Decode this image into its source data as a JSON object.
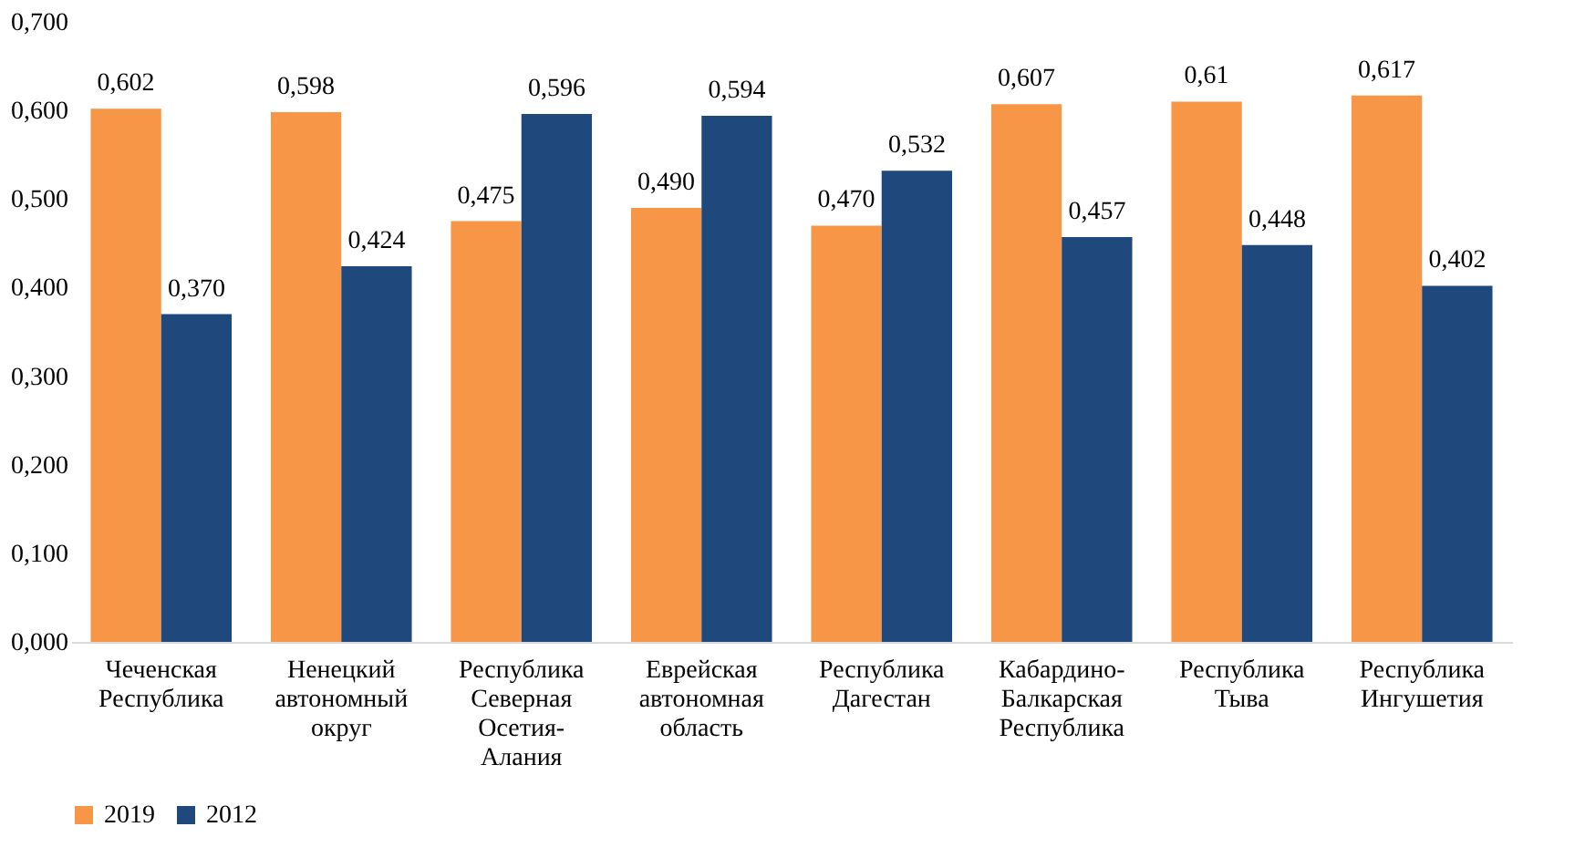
{
  "chart_data": {
    "type": "bar",
    "categories": [
      "Чеченская Республика",
      "Ненецкий автономный округ",
      "Республика Северная Осетия-Алания",
      "Еврейская автономная область",
      "Республика Дагестан",
      "Кабардино-Балкарская Республика",
      "Республика Тыва",
      "Республика Ингушетия"
    ],
    "series": [
      {
        "name": "2019",
        "color": "#f79646",
        "values": [
          0.602,
          0.598,
          0.475,
          0.49,
          0.47,
          0.607,
          0.61,
          0.617
        ],
        "value_labels": [
          "0,602",
          "0,598",
          "0,475",
          "0,490",
          "0,470",
          "0,607",
          "0,61",
          "0,617"
        ]
      },
      {
        "name": "2012",
        "color": "#1f497d",
        "values": [
          0.37,
          0.424,
          0.596,
          0.594,
          0.532,
          0.457,
          0.448,
          0.402
        ],
        "value_labels": [
          "0,370",
          "0,424",
          "0,596",
          "0,594",
          "0,532",
          "0,457",
          "0,448",
          "0,402"
        ]
      }
    ],
    "ylim": [
      0,
      0.7
    ],
    "yticks": [
      {
        "value": 0,
        "label": "0,000"
      },
      {
        "value": 0.1,
        "label": "0,100"
      },
      {
        "value": 0.2,
        "label": "0,200"
      },
      {
        "value": 0.3,
        "label": "0,300"
      },
      {
        "value": 0.4,
        "label": "0,400"
      },
      {
        "value": 0.5,
        "label": "0,500"
      },
      {
        "value": 0.6,
        "label": "0,600"
      },
      {
        "value": 0.7,
        "label": "0,700"
      }
    ],
    "legend": "bottom",
    "grid": false
  }
}
